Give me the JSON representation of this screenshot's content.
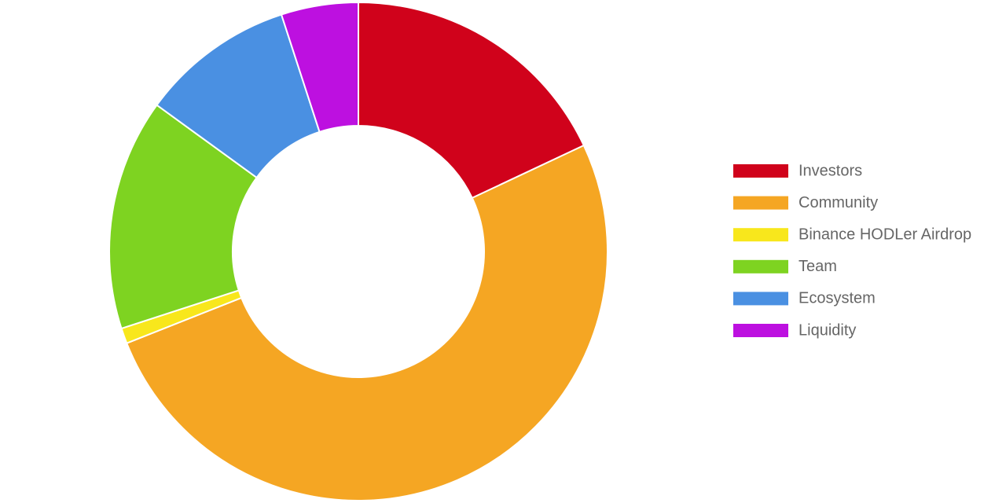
{
  "chart_data": {
    "type": "donut",
    "categories": [
      "Investors",
      "Community",
      "Binance HODLer Airdrop",
      "Team",
      "Ecosystem",
      "Liquidity"
    ],
    "values": [
      18,
      51,
      1,
      15,
      10,
      5
    ],
    "colors": [
      "#d0021b",
      "#f5a623",
      "#f8e71c",
      "#7ed321",
      "#4a90e2",
      "#bd10e0"
    ],
    "legend": "right"
  }
}
